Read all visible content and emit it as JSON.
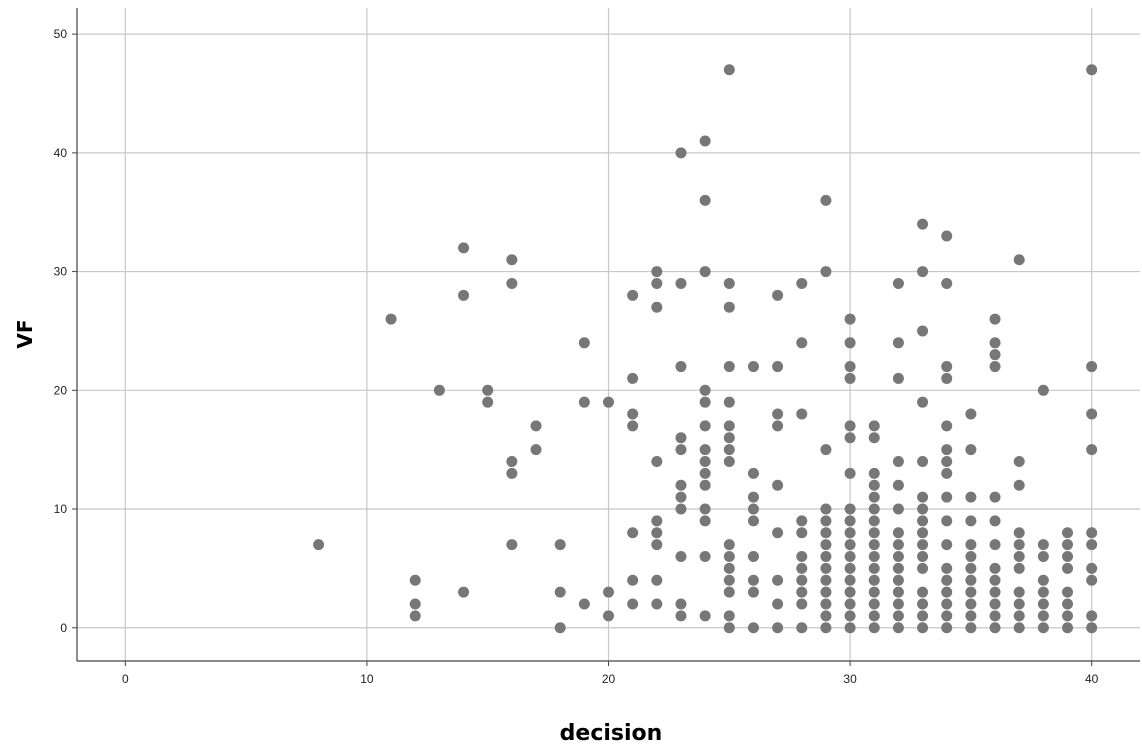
{
  "chart_data": {
    "type": "scatter",
    "xlabel": "decision",
    "ylabel": "VF",
    "xlim": [
      -2,
      42
    ],
    "ylim": [
      -2.8,
      52.2
    ],
    "x_ticks": [
      0,
      10,
      20,
      30,
      40
    ],
    "y_ticks": [
      0,
      10,
      20,
      30,
      40,
      50
    ],
    "grid": true,
    "marker_color": "#777777",
    "points": [
      {
        "x": 8,
        "y": 7
      },
      {
        "x": 11,
        "y": 26
      },
      {
        "x": 12,
        "y": 4
      },
      {
        "x": 12,
        "y": 2
      },
      {
        "x": 12,
        "y": 1
      },
      {
        "x": 13,
        "y": 20
      },
      {
        "x": 14,
        "y": 32
      },
      {
        "x": 14,
        "y": 28
      },
      {
        "x": 14,
        "y": 3
      },
      {
        "x": 15,
        "y": 20
      },
      {
        "x": 15,
        "y": 19
      },
      {
        "x": 16,
        "y": 31
      },
      {
        "x": 16,
        "y": 29
      },
      {
        "x": 16,
        "y": 14
      },
      {
        "x": 16,
        "y": 13
      },
      {
        "x": 16,
        "y": 7
      },
      {
        "x": 17,
        "y": 17
      },
      {
        "x": 17,
        "y": 15
      },
      {
        "x": 18,
        "y": 7
      },
      {
        "x": 18,
        "y": 3
      },
      {
        "x": 18,
        "y": 0
      },
      {
        "x": 19,
        "y": 24
      },
      {
        "x": 19,
        "y": 19
      },
      {
        "x": 19,
        "y": 2
      },
      {
        "x": 20,
        "y": 19
      },
      {
        "x": 20,
        "y": 3
      },
      {
        "x": 20,
        "y": 1
      },
      {
        "x": 21,
        "y": 28
      },
      {
        "x": 21,
        "y": 21
      },
      {
        "x": 21,
        "y": 18
      },
      {
        "x": 21,
        "y": 17
      },
      {
        "x": 21,
        "y": 8
      },
      {
        "x": 21,
        "y": 4
      },
      {
        "x": 21,
        "y": 2
      },
      {
        "x": 22,
        "y": 30
      },
      {
        "x": 22,
        "y": 29
      },
      {
        "x": 22,
        "y": 27
      },
      {
        "x": 22,
        "y": 14
      },
      {
        "x": 22,
        "y": 9
      },
      {
        "x": 22,
        "y": 8
      },
      {
        "x": 22,
        "y": 7
      },
      {
        "x": 22,
        "y": 4
      },
      {
        "x": 22,
        "y": 2
      },
      {
        "x": 23,
        "y": 40
      },
      {
        "x": 23,
        "y": 29
      },
      {
        "x": 23,
        "y": 22
      },
      {
        "x": 23,
        "y": 16
      },
      {
        "x": 23,
        "y": 15
      },
      {
        "x": 23,
        "y": 12
      },
      {
        "x": 23,
        "y": 11
      },
      {
        "x": 23,
        "y": 10
      },
      {
        "x": 23,
        "y": 6
      },
      {
        "x": 23,
        "y": 2
      },
      {
        "x": 23,
        "y": 1
      },
      {
        "x": 24,
        "y": 41
      },
      {
        "x": 24,
        "y": 36
      },
      {
        "x": 24,
        "y": 30
      },
      {
        "x": 24,
        "y": 20
      },
      {
        "x": 24,
        "y": 19
      },
      {
        "x": 24,
        "y": 17
      },
      {
        "x": 24,
        "y": 15
      },
      {
        "x": 24,
        "y": 14
      },
      {
        "x": 24,
        "y": 13
      },
      {
        "x": 24,
        "y": 12
      },
      {
        "x": 24,
        "y": 10
      },
      {
        "x": 24,
        "y": 9
      },
      {
        "x": 24,
        "y": 6
      },
      {
        "x": 24,
        "y": 1
      },
      {
        "x": 25,
        "y": 47
      },
      {
        "x": 25,
        "y": 29
      },
      {
        "x": 25,
        "y": 27
      },
      {
        "x": 25,
        "y": 22
      },
      {
        "x": 25,
        "y": 19
      },
      {
        "x": 25,
        "y": 17
      },
      {
        "x": 25,
        "y": 16
      },
      {
        "x": 25,
        "y": 15
      },
      {
        "x": 25,
        "y": 14
      },
      {
        "x": 25,
        "y": 7
      },
      {
        "x": 25,
        "y": 6
      },
      {
        "x": 25,
        "y": 5
      },
      {
        "x": 25,
        "y": 4
      },
      {
        "x": 25,
        "y": 3
      },
      {
        "x": 25,
        "y": 1
      },
      {
        "x": 25,
        "y": 0
      },
      {
        "x": 26,
        "y": 22
      },
      {
        "x": 26,
        "y": 13
      },
      {
        "x": 26,
        "y": 11
      },
      {
        "x": 26,
        "y": 10
      },
      {
        "x": 26,
        "y": 9
      },
      {
        "x": 26,
        "y": 6
      },
      {
        "x": 26,
        "y": 4
      },
      {
        "x": 26,
        "y": 3
      },
      {
        "x": 26,
        "y": 0
      },
      {
        "x": 27,
        "y": 28
      },
      {
        "x": 27,
        "y": 22
      },
      {
        "x": 27,
        "y": 18
      },
      {
        "x": 27,
        "y": 17
      },
      {
        "x": 27,
        "y": 12
      },
      {
        "x": 27,
        "y": 8
      },
      {
        "x": 27,
        "y": 4
      },
      {
        "x": 27,
        "y": 2
      },
      {
        "x": 27,
        "y": 0
      },
      {
        "x": 28,
        "y": 29
      },
      {
        "x": 28,
        "y": 24
      },
      {
        "x": 28,
        "y": 18
      },
      {
        "x": 28,
        "y": 9
      },
      {
        "x": 28,
        "y": 8
      },
      {
        "x": 28,
        "y": 6
      },
      {
        "x": 28,
        "y": 5
      },
      {
        "x": 28,
        "y": 4
      },
      {
        "x": 28,
        "y": 3
      },
      {
        "x": 28,
        "y": 2
      },
      {
        "x": 28,
        "y": 0
      },
      {
        "x": 29,
        "y": 36
      },
      {
        "x": 29,
        "y": 30
      },
      {
        "x": 29,
        "y": 15
      },
      {
        "x": 29,
        "y": 10
      },
      {
        "x": 29,
        "y": 9
      },
      {
        "x": 29,
        "y": 8
      },
      {
        "x": 29,
        "y": 7
      },
      {
        "x": 29,
        "y": 6
      },
      {
        "x": 29,
        "y": 5
      },
      {
        "x": 29,
        "y": 4
      },
      {
        "x": 29,
        "y": 3
      },
      {
        "x": 29,
        "y": 2
      },
      {
        "x": 29,
        "y": 1
      },
      {
        "x": 29,
        "y": 0
      },
      {
        "x": 30,
        "y": 26
      },
      {
        "x": 30,
        "y": 24
      },
      {
        "x": 30,
        "y": 22
      },
      {
        "x": 30,
        "y": 21
      },
      {
        "x": 30,
        "y": 17
      },
      {
        "x": 30,
        "y": 16
      },
      {
        "x": 30,
        "y": 13
      },
      {
        "x": 30,
        "y": 10
      },
      {
        "x": 30,
        "y": 9
      },
      {
        "x": 30,
        "y": 8
      },
      {
        "x": 30,
        "y": 7
      },
      {
        "x": 30,
        "y": 6
      },
      {
        "x": 30,
        "y": 5
      },
      {
        "x": 30,
        "y": 4
      },
      {
        "x": 30,
        "y": 3
      },
      {
        "x": 30,
        "y": 2
      },
      {
        "x": 30,
        "y": 1
      },
      {
        "x": 30,
        "y": 0
      },
      {
        "x": 31,
        "y": 17
      },
      {
        "x": 31,
        "y": 16
      },
      {
        "x": 31,
        "y": 13
      },
      {
        "x": 31,
        "y": 12
      },
      {
        "x": 31,
        "y": 11
      },
      {
        "x": 31,
        "y": 10
      },
      {
        "x": 31,
        "y": 9
      },
      {
        "x": 31,
        "y": 8
      },
      {
        "x": 31,
        "y": 7
      },
      {
        "x": 31,
        "y": 6
      },
      {
        "x": 31,
        "y": 5
      },
      {
        "x": 31,
        "y": 4
      },
      {
        "x": 31,
        "y": 3
      },
      {
        "x": 31,
        "y": 2
      },
      {
        "x": 31,
        "y": 1
      },
      {
        "x": 31,
        "y": 0
      },
      {
        "x": 32,
        "y": 29
      },
      {
        "x": 32,
        "y": 24
      },
      {
        "x": 32,
        "y": 21
      },
      {
        "x": 32,
        "y": 14
      },
      {
        "x": 32,
        "y": 12
      },
      {
        "x": 32,
        "y": 10
      },
      {
        "x": 32,
        "y": 8
      },
      {
        "x": 32,
        "y": 7
      },
      {
        "x": 32,
        "y": 6
      },
      {
        "x": 32,
        "y": 5
      },
      {
        "x": 32,
        "y": 4
      },
      {
        "x": 32,
        "y": 3
      },
      {
        "x": 32,
        "y": 2
      },
      {
        "x": 32,
        "y": 1
      },
      {
        "x": 32,
        "y": 0
      },
      {
        "x": 33,
        "y": 34
      },
      {
        "x": 33,
        "y": 30
      },
      {
        "x": 33,
        "y": 25
      },
      {
        "x": 33,
        "y": 19
      },
      {
        "x": 33,
        "y": 14
      },
      {
        "x": 33,
        "y": 11
      },
      {
        "x": 33,
        "y": 10
      },
      {
        "x": 33,
        "y": 9
      },
      {
        "x": 33,
        "y": 8
      },
      {
        "x": 33,
        "y": 7
      },
      {
        "x": 33,
        "y": 6
      },
      {
        "x": 33,
        "y": 5
      },
      {
        "x": 33,
        "y": 3
      },
      {
        "x": 33,
        "y": 2
      },
      {
        "x": 33,
        "y": 1
      },
      {
        "x": 33,
        "y": 0
      },
      {
        "x": 34,
        "y": 33
      },
      {
        "x": 34,
        "y": 29
      },
      {
        "x": 34,
        "y": 22
      },
      {
        "x": 34,
        "y": 21
      },
      {
        "x": 34,
        "y": 17
      },
      {
        "x": 34,
        "y": 15
      },
      {
        "x": 34,
        "y": 14
      },
      {
        "x": 34,
        "y": 13
      },
      {
        "x": 34,
        "y": 11
      },
      {
        "x": 34,
        "y": 9
      },
      {
        "x": 34,
        "y": 7
      },
      {
        "x": 34,
        "y": 5
      },
      {
        "x": 34,
        "y": 4
      },
      {
        "x": 34,
        "y": 3
      },
      {
        "x": 34,
        "y": 2
      },
      {
        "x": 34,
        "y": 1
      },
      {
        "x": 34,
        "y": 0
      },
      {
        "x": 35,
        "y": 18
      },
      {
        "x": 35,
        "y": 15
      },
      {
        "x": 35,
        "y": 11
      },
      {
        "x": 35,
        "y": 9
      },
      {
        "x": 35,
        "y": 7
      },
      {
        "x": 35,
        "y": 6
      },
      {
        "x": 35,
        "y": 5
      },
      {
        "x": 35,
        "y": 4
      },
      {
        "x": 35,
        "y": 3
      },
      {
        "x": 35,
        "y": 2
      },
      {
        "x": 35,
        "y": 1
      },
      {
        "x": 35,
        "y": 0
      },
      {
        "x": 36,
        "y": 26
      },
      {
        "x": 36,
        "y": 24
      },
      {
        "x": 36,
        "y": 23
      },
      {
        "x": 36,
        "y": 22
      },
      {
        "x": 36,
        "y": 11
      },
      {
        "x": 36,
        "y": 9
      },
      {
        "x": 36,
        "y": 7
      },
      {
        "x": 36,
        "y": 5
      },
      {
        "x": 36,
        "y": 4
      },
      {
        "x": 36,
        "y": 3
      },
      {
        "x": 36,
        "y": 2
      },
      {
        "x": 36,
        "y": 1
      },
      {
        "x": 36,
        "y": 0
      },
      {
        "x": 37,
        "y": 31
      },
      {
        "x": 37,
        "y": 14
      },
      {
        "x": 37,
        "y": 12
      },
      {
        "x": 37,
        "y": 8
      },
      {
        "x": 37,
        "y": 7
      },
      {
        "x": 37,
        "y": 6
      },
      {
        "x": 37,
        "y": 5
      },
      {
        "x": 37,
        "y": 3
      },
      {
        "x": 37,
        "y": 2
      },
      {
        "x": 37,
        "y": 1
      },
      {
        "x": 37,
        "y": 0
      },
      {
        "x": 38,
        "y": 20
      },
      {
        "x": 38,
        "y": 7
      },
      {
        "x": 38,
        "y": 6
      },
      {
        "x": 38,
        "y": 4
      },
      {
        "x": 38,
        "y": 3
      },
      {
        "x": 38,
        "y": 2
      },
      {
        "x": 38,
        "y": 1
      },
      {
        "x": 38,
        "y": 0
      },
      {
        "x": 39,
        "y": 8
      },
      {
        "x": 39,
        "y": 7
      },
      {
        "x": 39,
        "y": 6
      },
      {
        "x": 39,
        "y": 5
      },
      {
        "x": 39,
        "y": 3
      },
      {
        "x": 39,
        "y": 2
      },
      {
        "x": 39,
        "y": 1
      },
      {
        "x": 39,
        "y": 0
      },
      {
        "x": 40,
        "y": 47
      },
      {
        "x": 40,
        "y": 22
      },
      {
        "x": 40,
        "y": 18
      },
      {
        "x": 40,
        "y": 15
      },
      {
        "x": 40,
        "y": 8
      },
      {
        "x": 40,
        "y": 7
      },
      {
        "x": 40,
        "y": 5
      },
      {
        "x": 40,
        "y": 4
      },
      {
        "x": 40,
        "y": 1
      },
      {
        "x": 40,
        "y": 0
      }
    ]
  }
}
